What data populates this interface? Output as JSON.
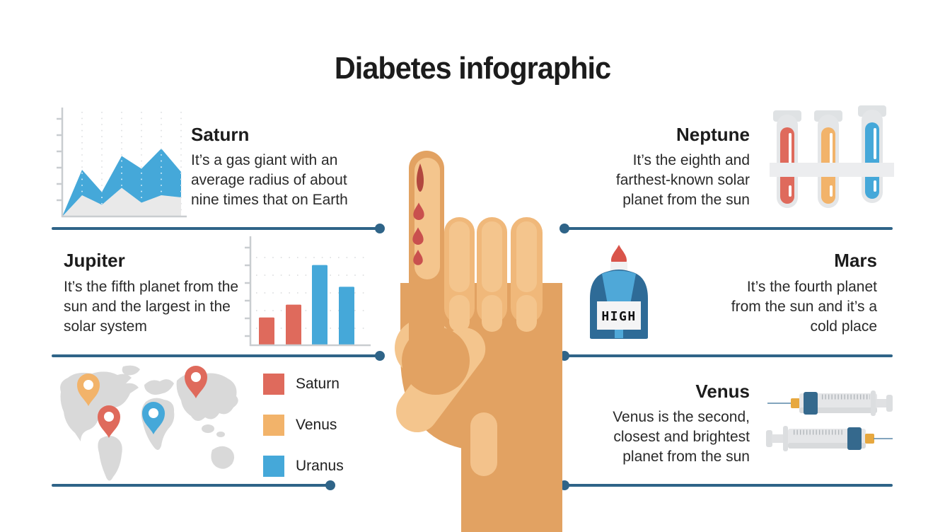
{
  "title": "Diabetes infographic",
  "sections": {
    "saturn": {
      "heading": "Saturn",
      "body": "It’s a gas giant with an average radius of about nine times that on Earth"
    },
    "jupiter": {
      "heading": "Jupiter",
      "body": "It’s the fifth planet from the sun and the largest in the solar system"
    },
    "neptune": {
      "heading": "Neptune",
      "body": "It’s the eighth and farthest-known solar planet from the sun"
    },
    "mars": {
      "heading": "Mars",
      "body": "It’s the fourth planet from the sun and it’s a cold place"
    },
    "venus": {
      "heading": "Venus",
      "body": "Venus is the second, closest and brightest planet from the sun"
    }
  },
  "legend": {
    "items": [
      {
        "label": "Saturn",
        "color": "#DF6A5C"
      },
      {
        "label": "Venus",
        "color": "#F2B36A"
      },
      {
        "label": "Uranus",
        "color": "#45A8D9"
      }
    ]
  },
  "meter": {
    "display": "HIGH"
  },
  "map": {
    "pins": [
      {
        "color": "#F2B36A",
        "region": "north-america"
      },
      {
        "color": "#DF6A5C",
        "region": "south-america"
      },
      {
        "color": "#45A8D9",
        "region": "africa"
      },
      {
        "color": "#DF6A5C",
        "region": "north-asia"
      }
    ]
  },
  "tubes": {
    "colors": [
      "#DF6A5C",
      "#F2B36A",
      "#45A8D9"
    ]
  },
  "colors": {
    "separator": "#2F6488",
    "red": "#DF6A5C",
    "orange": "#F2B36A",
    "blue": "#45A8D9",
    "chart_gray": "#E9E9E9",
    "skin_dark": "#E2A262",
    "skin_mid": "#F0B87A",
    "skin_light": "#F4C58D",
    "blood": "#C9504E",
    "meter_dark_blue": "#2E6B97",
    "meter_light_blue": "#4FA8D8"
  },
  "chart_data": [
    {
      "type": "area",
      "x": [
        0,
        1,
        2,
        3,
        4,
        5,
        6
      ],
      "series": [
        {
          "name": "lower-band",
          "color": "#E9E9E9",
          "values": [
            0,
            20,
            11,
            27,
            13,
            20,
            18
          ]
        },
        {
          "name": "upper-band",
          "color": "#45A8D9",
          "values": [
            0,
            44,
            23,
            57,
            45,
            64,
            42
          ]
        }
      ],
      "ylim": [
        0,
        100
      ],
      "grid": "dotted-vertical",
      "axis_labels": "none"
    },
    {
      "type": "bar",
      "values": [
        28,
        41,
        81,
        59
      ],
      "bar_colors": [
        "#DF6A5C",
        "#DF6A5C",
        "#45A8D9",
        "#45A8D9"
      ],
      "ylim": [
        0,
        100
      ],
      "grid": "dotted-horizontal",
      "axis_labels": "none"
    }
  ]
}
